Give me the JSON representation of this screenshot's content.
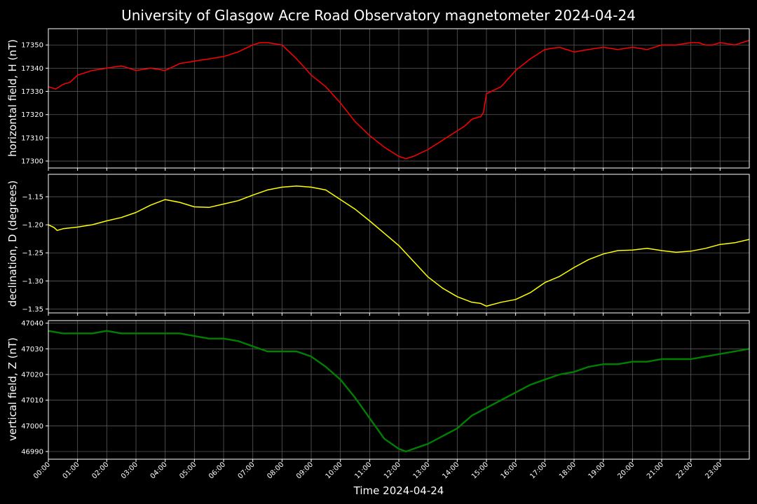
{
  "chart_data": {
    "type": "line",
    "title": "University of Glasgow Acre Road Observatory magnetometer 2024-04-24",
    "xlabel": "Time 2024-04-24",
    "x_ticks": [
      "00:00",
      "01:00",
      "02:00",
      "03:00",
      "04:00",
      "05:00",
      "06:00",
      "07:00",
      "08:00",
      "09:00",
      "10:00",
      "11:00",
      "12:00",
      "13:00",
      "14:00",
      "15:00",
      "16:00",
      "17:00",
      "18:00",
      "19:00",
      "20:00",
      "21:00",
      "22:00",
      "23:00"
    ],
    "xlim_hours": [
      0,
      24
    ],
    "grid": true,
    "panels": [
      {
        "ylabel": "horizontal field, H (nT)",
        "color": "#ff0000",
        "ylim": [
          17297,
          17357
        ],
        "yticks": [
          "17300",
          "17310",
          "17320",
          "17330",
          "17340",
          "17350"
        ],
        "series": {
          "x_hours": [
            0,
            0.25,
            0.5,
            0.75,
            1,
            1.5,
            2,
            2.5,
            3,
            3.5,
            4,
            4.5,
            5,
            5.5,
            6,
            6.5,
            7,
            7.25,
            7.5,
            8,
            8.5,
            9,
            9.5,
            10,
            10.5,
            11,
            11.5,
            12,
            12.25,
            12.5,
            13,
            13.5,
            14,
            14.25,
            14.5,
            14.75,
            14.8,
            14.9,
            15,
            15.5,
            16,
            16.5,
            17,
            17.5,
            18,
            18.5,
            19,
            19.5,
            20,
            20.5,
            21,
            21.5,
            22,
            22.25,
            22.5,
            22.75,
            23,
            23.5,
            24
          ],
          "values": [
            17332,
            17331,
            17333,
            17334,
            17337,
            17339,
            17340,
            17341,
            17339,
            17340,
            17339,
            17342,
            17343,
            17344,
            17345,
            17347,
            17350,
            17351,
            17351,
            17350,
            17344,
            17337,
            17332,
            17325,
            17317,
            17311,
            17306,
            17302,
            17301,
            17302,
            17305,
            17309,
            17313,
            17315,
            17318,
            17319,
            17319,
            17321,
            17329,
            17332,
            17339,
            17344,
            17348,
            17349,
            17347,
            17348,
            17349,
            17348,
            17349,
            17348,
            17350,
            17350,
            17351,
            17351,
            17350,
            17350,
            17351,
            17350,
            17352
          ]
        }
      },
      {
        "ylabel": "declination, D (degrees)",
        "color": "#ffff00",
        "ylim": [
          -1.357,
          -1.11
        ],
        "yticks": [
          "−1.15",
          "−1.20",
          "−1.25",
          "−1.30",
          "−1.35"
        ],
        "ytick_values": [
          -1.15,
          -1.2,
          -1.25,
          -1.3,
          -1.35
        ],
        "series": {
          "x_hours": [
            0,
            0.2,
            0.3,
            0.5,
            1,
            1.5,
            2,
            2.5,
            3,
            3.5,
            4,
            4.5,
            5,
            5.5,
            6,
            6.5,
            7,
            7.5,
            8,
            8.5,
            9,
            9.5,
            10,
            10.5,
            11,
            11.5,
            12,
            12.5,
            13,
            13.5,
            14,
            14.5,
            14.8,
            15,
            15.5,
            16,
            16.5,
            17,
            17.5,
            18,
            18.5,
            19,
            19.5,
            20,
            20.5,
            21,
            21.5,
            22,
            22.5,
            23,
            23.5,
            24
          ],
          "values": [
            -1.2,
            -1.205,
            -1.21,
            -1.207,
            -1.204,
            -1.2,
            -1.193,
            -1.187,
            -1.178,
            -1.165,
            -1.155,
            -1.16,
            -1.168,
            -1.169,
            -1.163,
            -1.157,
            -1.147,
            -1.138,
            -1.133,
            -1.131,
            -1.133,
            -1.138,
            -1.155,
            -1.172,
            -1.193,
            -1.215,
            -1.237,
            -1.265,
            -1.293,
            -1.313,
            -1.328,
            -1.338,
            -1.34,
            -1.345,
            -1.338,
            -1.333,
            -1.321,
            -1.303,
            -1.292,
            -1.276,
            -1.262,
            -1.252,
            -1.246,
            -1.245,
            -1.242,
            -1.246,
            -1.249,
            -1.247,
            -1.242,
            -1.235,
            -1.232,
            -1.226
          ]
        }
      },
      {
        "ylabel": "vertical field, Z (nT)",
        "color": "#008000",
        "ylim": [
          46987,
          47041
        ],
        "yticks": [
          "46990",
          "47000",
          "47010",
          "47020",
          "47030",
          "47040"
        ],
        "series": {
          "x_hours": [
            0,
            0.5,
            1,
            1.5,
            2,
            2.5,
            3,
            3.5,
            4,
            4.5,
            5,
            5.5,
            6,
            6.5,
            7,
            7.5,
            8,
            8.5,
            9,
            9.5,
            10,
            10.5,
            11,
            11.5,
            12,
            12.25,
            12.5,
            13,
            13.5,
            14,
            14.5,
            15,
            15.5,
            16,
            16.5,
            17,
            17.5,
            18,
            18.5,
            19,
            19.5,
            20,
            20.5,
            21,
            21.5,
            22,
            22.5,
            23,
            23.5,
            24
          ],
          "values": [
            47037,
            47036,
            47036,
            47036,
            47037,
            47036,
            47036,
            47036,
            47036,
            47036,
            47035,
            47034,
            47034,
            47033,
            47031,
            47029,
            47029,
            47029,
            47027,
            47023,
            47018,
            47011,
            47003,
            46995,
            46991,
            46990,
            46991,
            46993,
            46996,
            46999,
            47004,
            47007,
            47010,
            47013,
            47016,
            47018,
            47020,
            47021,
            47023,
            47024,
            47024,
            47025,
            47025,
            47026,
            47026,
            47026,
            47027,
            47028,
            47029,
            47030
          ]
        }
      }
    ]
  }
}
